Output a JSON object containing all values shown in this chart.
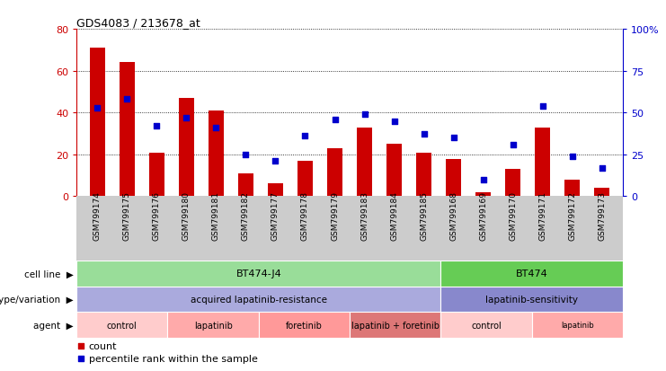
{
  "title": "GDS4083 / 213678_at",
  "samples": [
    "GSM799174",
    "GSM799175",
    "GSM799176",
    "GSM799180",
    "GSM799181",
    "GSM799182",
    "GSM799177",
    "GSM799178",
    "GSM799179",
    "GSM799183",
    "GSM799184",
    "GSM799185",
    "GSM799168",
    "GSM799169",
    "GSM799170",
    "GSM799171",
    "GSM799172",
    "GSM799173"
  ],
  "bar_values": [
    71,
    64,
    21,
    47,
    41,
    11,
    6,
    17,
    23,
    33,
    25,
    21,
    18,
    2,
    13,
    33,
    8,
    4
  ],
  "dot_values": [
    53,
    58,
    42,
    47,
    41,
    25,
    21,
    36,
    46,
    49,
    45,
    37,
    35,
    10,
    31,
    54,
    24,
    17
  ],
  "bar_color": "#cc0000",
  "dot_color": "#0000cc",
  "ylim_left": [
    0,
    80
  ],
  "ylim_right": [
    0,
    100
  ],
  "yticks_left": [
    0,
    20,
    40,
    60,
    80
  ],
  "yticks_right": [
    0,
    25,
    50,
    75,
    100
  ],
  "ytick_labels_right": [
    "0",
    "25",
    "50",
    "75",
    "100%"
  ],
  "grid_yticks": [
    20,
    40,
    60,
    80
  ],
  "cell_line_groups": [
    {
      "label": "BT474-J4",
      "start": 0,
      "end": 12,
      "color": "#99dd99"
    },
    {
      "label": "BT474",
      "start": 12,
      "end": 18,
      "color": "#66cc55"
    }
  ],
  "genotype_groups": [
    {
      "label": "acquired lapatinib-resistance",
      "start": 0,
      "end": 12,
      "color": "#aaaadd"
    },
    {
      "label": "lapatinib-sensitivity",
      "start": 12,
      "end": 18,
      "color": "#8888cc"
    }
  ],
  "agent_groups": [
    {
      "label": "control",
      "start": 0,
      "end": 3,
      "color": "#ffcccc"
    },
    {
      "label": "lapatinib",
      "start": 3,
      "end": 6,
      "color": "#ffaaaa"
    },
    {
      "label": "foretinib",
      "start": 6,
      "end": 9,
      "color": "#ff9999"
    },
    {
      "label": "lapatinib + foretinib",
      "start": 9,
      "end": 12,
      "color": "#dd7777"
    },
    {
      "label": "control",
      "start": 12,
      "end": 15,
      "color": "#ffcccc"
    },
    {
      "label": "lapatinib",
      "start": 15,
      "end": 18,
      "color": "#ffaaaa"
    }
  ],
  "row_labels": [
    "cell line",
    "genotype/variation",
    "agent"
  ],
  "legend_count": "count",
  "legend_percentile": "percentile rank within the sample",
  "bg_color": "#ffffff",
  "xtick_bg_color": "#cccccc",
  "bar_width": 0.5,
  "dot_size": 25,
  "n_samples": 18
}
